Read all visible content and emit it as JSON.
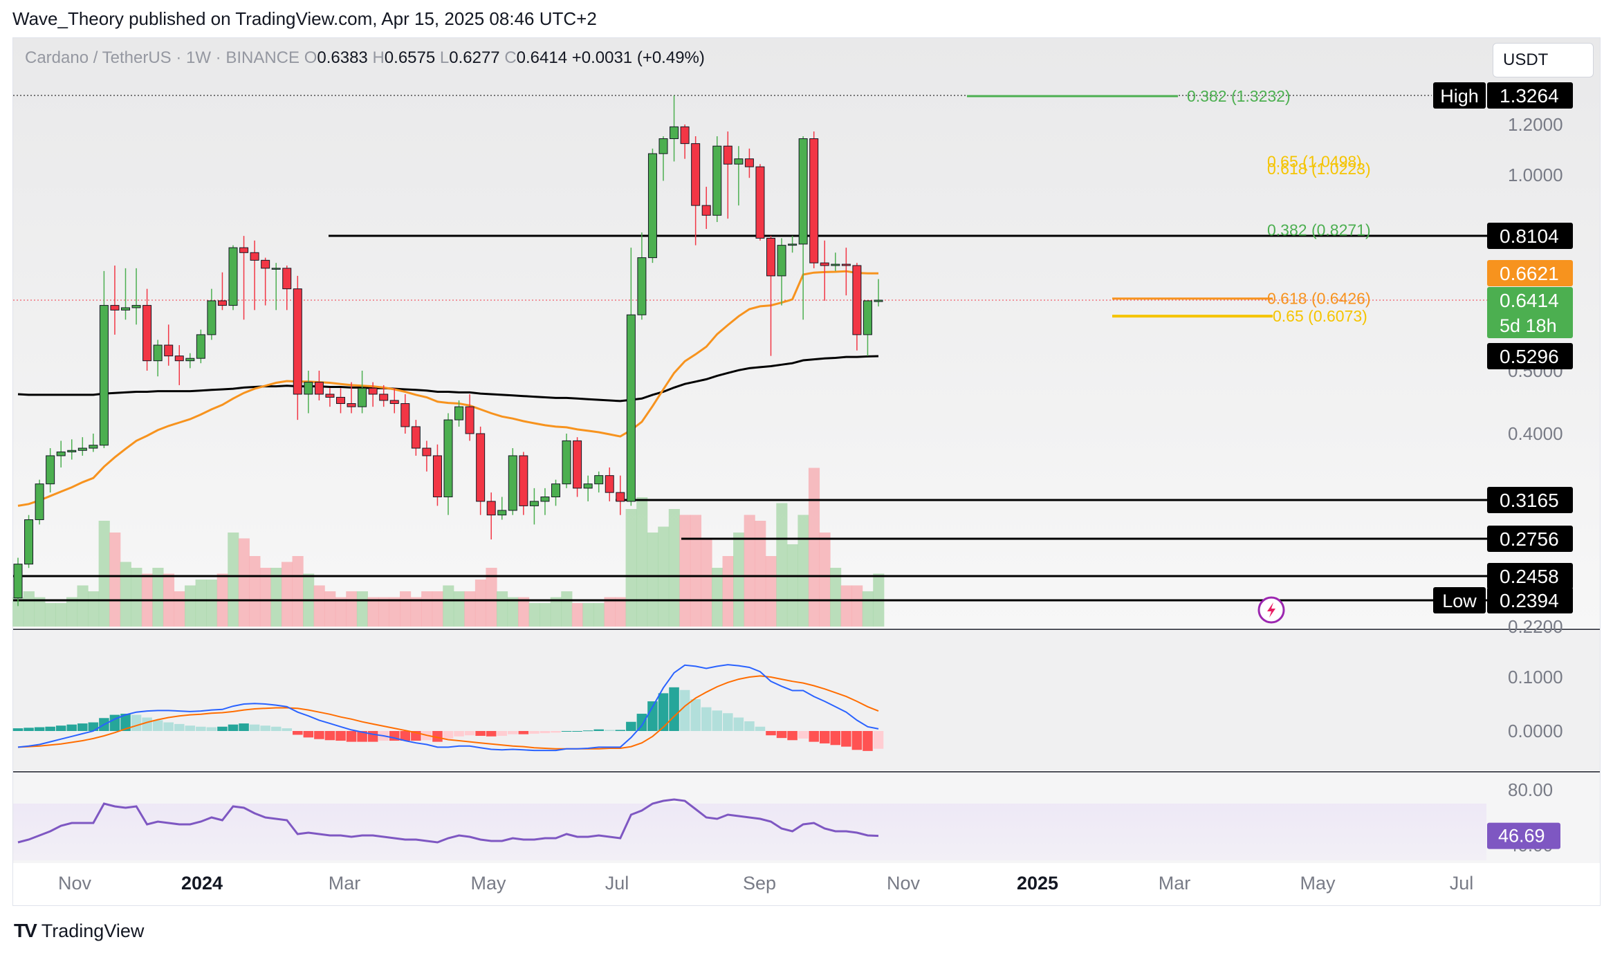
{
  "header": {
    "publisher_caption": "Wave_Theory published on TradingView.com, Apr 15, 2025 08:46 UTC+2"
  },
  "symbol_bar": {
    "name": "Cardano / TetherUS · 1W · BINANCE",
    "open_label": "O",
    "open": "0.6383",
    "high_label": "H",
    "high": "0.6575",
    "low_label": "L",
    "low": "0.6277",
    "close_label": "C",
    "close": "0.6414",
    "change": "+0.0031 (+0.49%)"
  },
  "currency": "USDT",
  "brand": {
    "logo": "TV",
    "name": "TradingView"
  },
  "colors": {
    "up": "#4caf50",
    "down": "#f23645",
    "ema_fast": "#f7931e",
    "ema_slow": "#000000",
    "fib_green": "#4caf50",
    "fib_orange": "#f7931e",
    "fib_yellow": "#f5c400",
    "macd": "#2962ff",
    "signal": "#ff6d00",
    "rsi": "#7e57c2"
  },
  "chart_data": [
    {
      "type": "candlestick",
      "interval": "1W",
      "y_axis_ticks": [
        "1.2000",
        "1.0000",
        "0.5000",
        "0.4000",
        "0.2200"
      ],
      "x_axis_ticks": [
        "Nov",
        "2024",
        "Mar",
        "May",
        "Jul",
        "Sep",
        "Nov",
        "2025",
        "Mar",
        "May",
        "Jul"
      ],
      "candles": [
        {
          "o": 0.24,
          "h": 0.26,
          "l": 0.235,
          "c": 0.255
        },
        {
          "o": 0.255,
          "h": 0.3,
          "l": 0.252,
          "c": 0.295
        },
        {
          "o": 0.295,
          "h": 0.34,
          "l": 0.29,
          "c": 0.335
        },
        {
          "o": 0.335,
          "h": 0.38,
          "l": 0.325,
          "c": 0.37
        },
        {
          "o": 0.37,
          "h": 0.39,
          "l": 0.355,
          "c": 0.375
        },
        {
          "o": 0.375,
          "h": 0.392,
          "l": 0.365,
          "c": 0.377
        },
        {
          "o": 0.377,
          "h": 0.395,
          "l": 0.37,
          "c": 0.38
        },
        {
          "o": 0.38,
          "h": 0.4,
          "l": 0.375,
          "c": 0.384
        },
        {
          "o": 0.384,
          "h": 0.67,
          "l": 0.38,
          "c": 0.63
        },
        {
          "o": 0.63,
          "h": 0.69,
          "l": 0.57,
          "c": 0.62
        },
        {
          "o": 0.62,
          "h": 0.68,
          "l": 0.6,
          "c": 0.625
        },
        {
          "o": 0.625,
          "h": 0.68,
          "l": 0.59,
          "c": 0.63
        },
        {
          "o": 0.63,
          "h": 0.65,
          "l": 0.5,
          "c": 0.52
        },
        {
          "o": 0.52,
          "h": 0.56,
          "l": 0.49,
          "c": 0.55
        },
        {
          "o": 0.55,
          "h": 0.59,
          "l": 0.51,
          "c": 0.53
        },
        {
          "o": 0.53,
          "h": 0.55,
          "l": 0.475,
          "c": 0.52
        },
        {
          "o": 0.52,
          "h": 0.535,
          "l": 0.505,
          "c": 0.525
        },
        {
          "o": 0.525,
          "h": 0.58,
          "l": 0.515,
          "c": 0.57
        },
        {
          "o": 0.57,
          "h": 0.65,
          "l": 0.56,
          "c": 0.64
        },
        {
          "o": 0.64,
          "h": 0.665,
          "l": 0.62,
          "c": 0.63
        },
        {
          "o": 0.63,
          "h": 0.77,
          "l": 0.62,
          "c": 0.76
        },
        {
          "o": 0.76,
          "h": 0.81,
          "l": 0.6,
          "c": 0.74
        },
        {
          "o": 0.74,
          "h": 0.79,
          "l": 0.62,
          "c": 0.71
        },
        {
          "o": 0.71,
          "h": 0.72,
          "l": 0.63,
          "c": 0.68
        },
        {
          "o": 0.68,
          "h": 0.7,
          "l": 0.62,
          "c": 0.68
        },
        {
          "o": 0.68,
          "h": 0.69,
          "l": 0.62,
          "c": 0.65
        },
        {
          "o": 0.65,
          "h": 0.66,
          "l": 0.42,
          "c": 0.46
        },
        {
          "o": 0.46,
          "h": 0.5,
          "l": 0.43,
          "c": 0.48
        },
        {
          "o": 0.48,
          "h": 0.5,
          "l": 0.45,
          "c": 0.46
        },
        {
          "o": 0.46,
          "h": 0.47,
          "l": 0.44,
          "c": 0.455
        },
        {
          "o": 0.455,
          "h": 0.47,
          "l": 0.43,
          "c": 0.445
        },
        {
          "o": 0.445,
          "h": 0.48,
          "l": 0.43,
          "c": 0.44
        },
        {
          "o": 0.44,
          "h": 0.5,
          "l": 0.43,
          "c": 0.47
        },
        {
          "o": 0.47,
          "h": 0.48,
          "l": 0.44,
          "c": 0.46
        },
        {
          "o": 0.46,
          "h": 0.475,
          "l": 0.44,
          "c": 0.45
        },
        {
          "o": 0.45,
          "h": 0.47,
          "l": 0.43,
          "c": 0.445
        },
        {
          "o": 0.445,
          "h": 0.46,
          "l": 0.4,
          "c": 0.41
        },
        {
          "o": 0.41,
          "h": 0.42,
          "l": 0.37,
          "c": 0.38
        },
        {
          "o": 0.38,
          "h": 0.39,
          "l": 0.35,
          "c": 0.37
        },
        {
          "o": 0.37,
          "h": 0.385,
          "l": 0.31,
          "c": 0.32
        },
        {
          "o": 0.32,
          "h": 0.43,
          "l": 0.3,
          "c": 0.42
        },
        {
          "o": 0.42,
          "h": 0.45,
          "l": 0.41,
          "c": 0.44
        },
        {
          "o": 0.44,
          "h": 0.46,
          "l": 0.39,
          "c": 0.4
        },
        {
          "o": 0.4,
          "h": 0.41,
          "l": 0.3,
          "c": 0.315
        },
        {
          "o": 0.315,
          "h": 0.325,
          "l": 0.275,
          "c": 0.3
        },
        {
          "o": 0.3,
          "h": 0.32,
          "l": 0.295,
          "c": 0.305
        },
        {
          "o": 0.305,
          "h": 0.38,
          "l": 0.3,
          "c": 0.37
        },
        {
          "o": 0.37,
          "h": 0.375,
          "l": 0.3,
          "c": 0.31
        },
        {
          "o": 0.31,
          "h": 0.33,
          "l": 0.29,
          "c": 0.315
        },
        {
          "o": 0.315,
          "h": 0.33,
          "l": 0.3,
          "c": 0.32
        },
        {
          "o": 0.32,
          "h": 0.34,
          "l": 0.31,
          "c": 0.335
        },
        {
          "o": 0.335,
          "h": 0.4,
          "l": 0.33,
          "c": 0.39
        },
        {
          "o": 0.39,
          "h": 0.395,
          "l": 0.32,
          "c": 0.33
        },
        {
          "o": 0.33,
          "h": 0.345,
          "l": 0.315,
          "c": 0.335
        },
        {
          "o": 0.335,
          "h": 0.35,
          "l": 0.325,
          "c": 0.345
        },
        {
          "o": 0.345,
          "h": 0.355,
          "l": 0.315,
          "c": 0.325
        },
        {
          "o": 0.325,
          "h": 0.345,
          "l": 0.3,
          "c": 0.315
        },
        {
          "o": 0.315,
          "h": 0.76,
          "l": 0.31,
          "c": 0.61
        },
        {
          "o": 0.61,
          "h": 0.82,
          "l": 0.6,
          "c": 0.72
        },
        {
          "o": 0.72,
          "h": 1.1,
          "l": 0.7,
          "c": 1.08
        },
        {
          "o": 1.08,
          "h": 1.15,
          "l": 0.98,
          "c": 1.14
        },
        {
          "o": 1.14,
          "h": 1.326,
          "l": 1.05,
          "c": 1.19
        },
        {
          "o": 1.19,
          "h": 1.2,
          "l": 1.06,
          "c": 1.12
        },
        {
          "o": 1.12,
          "h": 1.15,
          "l": 0.77,
          "c": 0.9
        },
        {
          "o": 0.9,
          "h": 0.96,
          "l": 0.83,
          "c": 0.87
        },
        {
          "o": 0.87,
          "h": 1.15,
          "l": 0.85,
          "c": 1.11
        },
        {
          "o": 1.11,
          "h": 1.17,
          "l": 0.86,
          "c": 1.04
        },
        {
          "o": 1.04,
          "h": 1.11,
          "l": 0.9,
          "c": 1.06
        },
        {
          "o": 1.06,
          "h": 1.1,
          "l": 0.99,
          "c": 1.03
        },
        {
          "o": 1.03,
          "h": 1.04,
          "l": 0.79,
          "c": 0.8
        },
        {
          "o": 0.8,
          "h": 0.81,
          "l": 0.53,
          "c": 0.66
        },
        {
          "o": 0.66,
          "h": 0.8,
          "l": 0.63,
          "c": 0.77
        },
        {
          "o": 0.77,
          "h": 0.81,
          "l": 0.74,
          "c": 0.775
        },
        {
          "o": 0.775,
          "h": 1.15,
          "l": 0.6,
          "c": 1.14
        },
        {
          "o": 1.14,
          "h": 1.17,
          "l": 0.68,
          "c": 0.7
        },
        {
          "o": 0.7,
          "h": 0.79,
          "l": 0.64,
          "c": 0.69
        },
        {
          "o": 0.69,
          "h": 0.74,
          "l": 0.67,
          "c": 0.695
        },
        {
          "o": 0.695,
          "h": 0.76,
          "l": 0.645,
          "c": 0.69
        },
        {
          "o": 0.69,
          "h": 0.7,
          "l": 0.54,
          "c": 0.57
        },
        {
          "o": 0.57,
          "h": 0.64,
          "l": 0.53,
          "c": 0.64
        },
        {
          "o": 0.6383,
          "h": 0.6575,
          "l": 0.6277,
          "c": 0.6414
        }
      ],
      "ema_fast": [
        0.31,
        0.312,
        0.316,
        0.321,
        0.326,
        0.331,
        0.337,
        0.342,
        0.356,
        0.368,
        0.379,
        0.39,
        0.397,
        0.405,
        0.411,
        0.416,
        0.421,
        0.428,
        0.436,
        0.443,
        0.453,
        0.462,
        0.469,
        0.474,
        0.479,
        0.482,
        0.481,
        0.481,
        0.48,
        0.479,
        0.477,
        0.475,
        0.474,
        0.473,
        0.471,
        0.468,
        0.464,
        0.459,
        0.455,
        0.448,
        0.446,
        0.445,
        0.442,
        0.436,
        0.43,
        0.425,
        0.422,
        0.418,
        0.415,
        0.412,
        0.41,
        0.409,
        0.406,
        0.404,
        0.402,
        0.399,
        0.396,
        0.405,
        0.417,
        0.441,
        0.468,
        0.496,
        0.519,
        0.533,
        0.547,
        0.571,
        0.589,
        0.607,
        0.622,
        0.628,
        0.63,
        0.636,
        0.642,
        0.661,
        0.664,
        0.666,
        0.667,
        0.669,
        0.663,
        0.662,
        0.662
      ],
      "ema_slow": [
        0.46,
        0.459,
        0.459,
        0.459,
        0.459,
        0.459,
        0.459,
        0.459,
        0.461,
        0.462,
        0.463,
        0.464,
        0.464,
        0.465,
        0.465,
        0.465,
        0.465,
        0.466,
        0.467,
        0.468,
        0.469,
        0.471,
        0.472,
        0.473,
        0.473,
        0.474,
        0.473,
        0.473,
        0.473,
        0.472,
        0.472,
        0.471,
        0.471,
        0.47,
        0.47,
        0.469,
        0.468,
        0.467,
        0.466,
        0.464,
        0.464,
        0.463,
        0.463,
        0.461,
        0.46,
        0.459,
        0.458,
        0.457,
        0.456,
        0.455,
        0.454,
        0.454,
        0.453,
        0.452,
        0.451,
        0.45,
        0.449,
        0.451,
        0.453,
        0.459,
        0.464,
        0.471,
        0.477,
        0.481,
        0.485,
        0.491,
        0.496,
        0.501,
        0.505,
        0.507,
        0.509,
        0.512,
        0.515,
        0.521,
        0.523,
        0.525,
        0.526,
        0.528,
        0.528,
        0.529,
        0.5296
      ]
    }
  ],
  "price_labels": [
    {
      "text": "High",
      "value": "1.3264",
      "y": 1.3264,
      "bg": "#000000"
    },
    {
      "text": "",
      "value": "0.8104",
      "y": 0.8104,
      "bg": "#000000"
    },
    {
      "text": "",
      "value": "0.6621",
      "y": 0.6621,
      "bg": "#f7931e"
    },
    {
      "text": "",
      "value": "0.6414",
      "sub": "5d 18h",
      "y": 0.6414,
      "bg": "#4caf50"
    },
    {
      "text": "",
      "value": "0.5296",
      "y": 0.5296,
      "bg": "#000000"
    },
    {
      "text": "",
      "value": "0.3165",
      "y": 0.3165,
      "bg": "#000000"
    },
    {
      "text": "",
      "value": "0.2756",
      "y": 0.2756,
      "bg": "#000000"
    },
    {
      "text": "",
      "value": "0.2458",
      "y": 0.2458,
      "bg": "#000000"
    },
    {
      "text": "Low",
      "value": "0.2394",
      "y": 0.2394,
      "bg": "#000000"
    }
  ],
  "fib_labels": [
    {
      "text": "0.382 (1.3232)",
      "color": "#4caf50",
      "y": 1.3232
    },
    {
      "text": "0.65 (1.0498)",
      "color": "#f5c400",
      "y": 1.0498
    },
    {
      "text": "0.618 (1.0223)",
      "color": "#f5c400",
      "y": 1.0223
    },
    {
      "text": "0.382 (0.8271)",
      "color": "#4caf50",
      "y": 0.8271
    },
    {
      "text": "0.618 (0.6426)",
      "color": "#f7931e",
      "y": 0.6426
    },
    {
      "text": "0.65 (0.6073)",
      "color": "#f5c400",
      "y": 0.6073
    }
  ],
  "volume": [
    0.25,
    0.3,
    0.25,
    0.2,
    0.2,
    0.25,
    0.35,
    0.3,
    0.9,
    0.8,
    0.55,
    0.5,
    0.45,
    0.5,
    0.45,
    0.3,
    0.35,
    0.4,
    0.4,
    0.45,
    0.8,
    0.75,
    0.6,
    0.5,
    0.5,
    0.55,
    0.6,
    0.45,
    0.35,
    0.3,
    0.25,
    0.3,
    0.3,
    0.25,
    0.25,
    0.25,
    0.3,
    0.25,
    0.3,
    0.3,
    0.35,
    0.3,
    0.3,
    0.4,
    0.5,
    0.3,
    0.25,
    0.25,
    0.2,
    0.2,
    0.25,
    0.3,
    0.2,
    0.2,
    0.2,
    0.25,
    0.25,
    1.0,
    1.1,
    0.8,
    0.85,
    1.0,
    0.95,
    0.95,
    0.75,
    0.5,
    0.6,
    0.8,
    0.95,
    0.9,
    0.6,
    1.05,
    0.7,
    0.95,
    1.35,
    0.8,
    0.5,
    0.35,
    0.35,
    0.3,
    0.45,
    0.2
  ],
  "macd_panel": {
    "y_axis_ticks": [
      "0.1000",
      "0.0000"
    ],
    "macd": [
      -0.03,
      -0.028,
      -0.025,
      -0.02,
      -0.015,
      -0.01,
      -0.005,
      0.0,
      0.012,
      0.022,
      0.03,
      0.035,
      0.037,
      0.038,
      0.038,
      0.037,
      0.036,
      0.037,
      0.039,
      0.04,
      0.046,
      0.05,
      0.051,
      0.05,
      0.048,
      0.045,
      0.035,
      0.028,
      0.02,
      0.014,
      0.008,
      0.002,
      -0.002,
      -0.006,
      -0.009,
      -0.013,
      -0.018,
      -0.022,
      -0.025,
      -0.03,
      -0.03,
      -0.028,
      -0.028,
      -0.031,
      -0.034,
      -0.035,
      -0.034,
      -0.035,
      -0.036,
      -0.036,
      -0.036,
      -0.033,
      -0.033,
      -0.032,
      -0.03,
      -0.03,
      -0.03,
      -0.012,
      0.01,
      0.045,
      0.08,
      0.108,
      0.122,
      0.12,
      0.116,
      0.12,
      0.123,
      0.121,
      0.118,
      0.11,
      0.092,
      0.083,
      0.075,
      0.075,
      0.064,
      0.055,
      0.045,
      0.035,
      0.02,
      0.008,
      0.004
    ],
    "signal": [
      -0.03,
      -0.029,
      -0.028,
      -0.026,
      -0.024,
      -0.021,
      -0.018,
      -0.014,
      -0.009,
      -0.003,
      0.004,
      0.01,
      0.016,
      0.021,
      0.025,
      0.028,
      0.03,
      0.031,
      0.033,
      0.034,
      0.036,
      0.039,
      0.041,
      0.042,
      0.043,
      0.043,
      0.042,
      0.039,
      0.035,
      0.031,
      0.026,
      0.022,
      0.017,
      0.013,
      0.009,
      0.005,
      0.001,
      -0.003,
      -0.008,
      -0.012,
      -0.016,
      -0.018,
      -0.02,
      -0.022,
      -0.024,
      -0.026,
      -0.028,
      -0.029,
      -0.031,
      -0.032,
      -0.033,
      -0.033,
      -0.033,
      -0.033,
      -0.033,
      -0.032,
      -0.032,
      -0.029,
      -0.022,
      -0.01,
      0.007,
      0.027,
      0.046,
      0.061,
      0.072,
      0.082,
      0.09,
      0.096,
      0.1,
      0.102,
      0.1,
      0.096,
      0.092,
      0.089,
      0.084,
      0.078,
      0.071,
      0.064,
      0.055,
      0.045,
      0.037
    ],
    "histogram": [
      0.005,
      0.006,
      0.007,
      0.008,
      0.01,
      0.012,
      0.014,
      0.016,
      0.024,
      0.03,
      0.032,
      0.03,
      0.025,
      0.02,
      0.016,
      0.013,
      0.01,
      0.008,
      0.007,
      0.008,
      0.012,
      0.014,
      0.012,
      0.01,
      0.008,
      0.005,
      -0.007,
      -0.012,
      -0.015,
      -0.017,
      -0.018,
      -0.02,
      -0.02,
      -0.02,
      -0.018,
      -0.018,
      -0.018,
      -0.018,
      -0.017,
      -0.02,
      -0.014,
      -0.01,
      -0.008,
      -0.009,
      -0.01,
      -0.009,
      -0.006,
      -0.006,
      -0.005,
      -0.004,
      -0.003,
      0.0,
      0.0,
      0.001,
      0.003,
      0.002,
      0.002,
      0.017,
      0.032,
      0.055,
      0.07,
      0.081,
      0.076,
      0.059,
      0.044,
      0.038,
      0.033,
      0.025,
      0.018,
      0.008,
      -0.008,
      -0.013,
      -0.017,
      -0.014,
      -0.02,
      -0.023,
      -0.026,
      -0.029,
      -0.035,
      -0.037,
      -0.033
    ]
  },
  "rsi_panel": {
    "y_axis_ticks": [
      "80.00",
      "40.00"
    ],
    "value_label": "46.69",
    "rsi": [
      42,
      44,
      47,
      50,
      54,
      56,
      56,
      56,
      70,
      68,
      67,
      68,
      55,
      57,
      56,
      55,
      55,
      57,
      60,
      58,
      68,
      67,
      63,
      60,
      59,
      58,
      48,
      49,
      48,
      47,
      47,
      46,
      47,
      47,
      46,
      45,
      44,
      44,
      43,
      42,
      45,
      47,
      46,
      44,
      43,
      43,
      45,
      44,
      44,
      45,
      45,
      48,
      46,
      46,
      47,
      46,
      45,
      62,
      65,
      70,
      72,
      73,
      72,
      66,
      60,
      59,
      62,
      61,
      60,
      59,
      57,
      52,
      50,
      55,
      56,
      52,
      50,
      50,
      49,
      47,
      46.69
    ]
  },
  "watermark_icon": "lightning-icon"
}
